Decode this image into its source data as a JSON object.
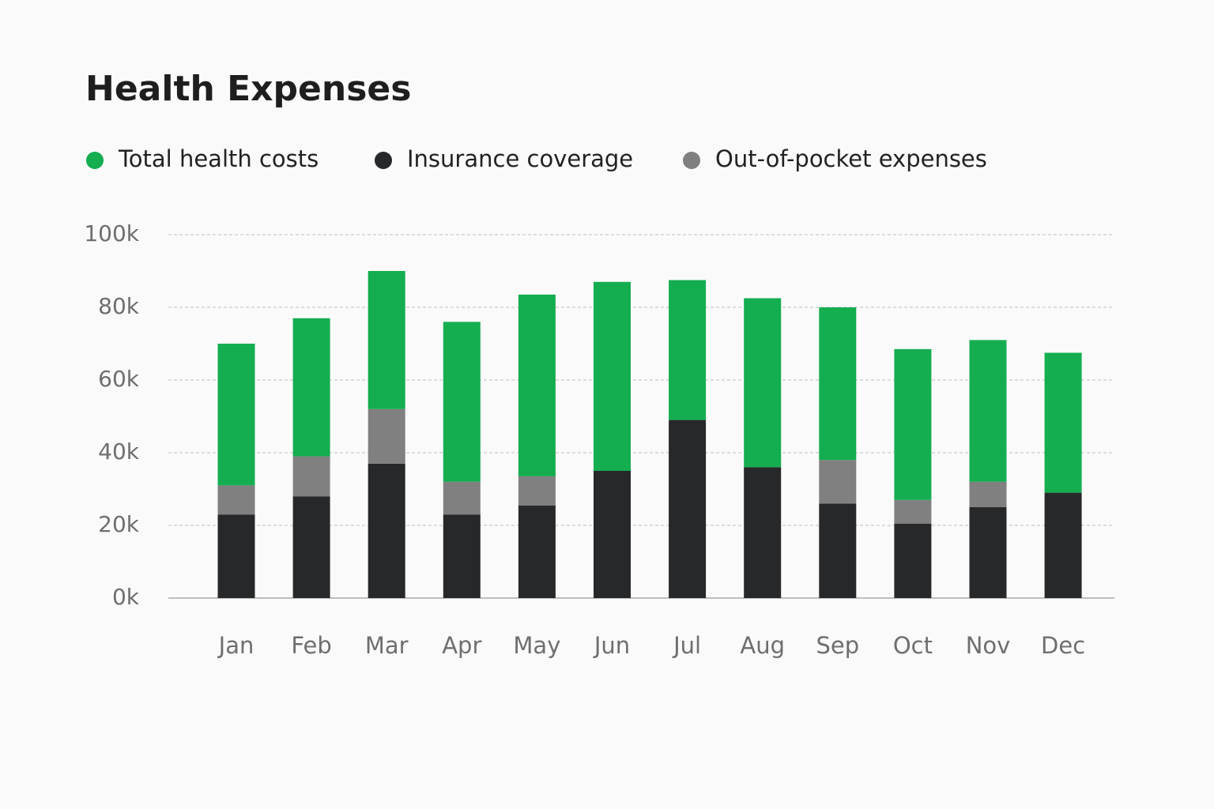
{
  "chart_data": {
    "type": "stacked_bar",
    "title": "Health Expenses",
    "categories": [
      "Jan",
      "Feb",
      "Mar",
      "Apr",
      "May",
      "Jun",
      "Jul",
      "Aug",
      "Sep",
      "Oct",
      "Nov",
      "Dec"
    ],
    "series": [
      {
        "name": "Total health costs",
        "color": "#14ad50",
        "values": [
          39,
          38,
          38,
          44,
          50,
          52,
          38.5,
          46.5,
          42,
          41.5,
          39,
          38.5
        ]
      },
      {
        "name": "Insurance coverage",
        "color": "#26282a",
        "values": [
          23,
          28,
          37,
          23,
          25.5,
          35,
          49,
          36,
          26,
          20.5,
          25,
          29
        ]
      },
      {
        "name": "Out-of-pocket expenses",
        "color": "#808080",
        "values": [
          8,
          11,
          15,
          9,
          8,
          0,
          0,
          0,
          12,
          6.5,
          7,
          0
        ]
      }
    ],
    "ylim": [
      0,
      100
    ],
    "yticks": [
      {
        "value": 0,
        "label": "0k"
      },
      {
        "value": 20,
        "label": "20k"
      },
      {
        "value": 40,
        "label": "40k"
      },
      {
        "value": 60,
        "label": "60k"
      },
      {
        "value": 80,
        "label": "80k"
      },
      {
        "value": 100,
        "label": "100k"
      }
    ],
    "grid": true
  }
}
